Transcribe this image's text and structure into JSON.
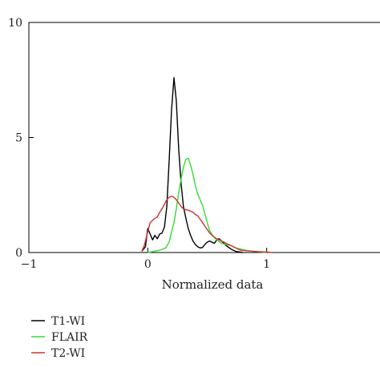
{
  "chart_data": {
    "type": "line",
    "title": "",
    "xlabel": "Normalized data",
    "ylabel": "",
    "xlim": [
      -1,
      2
    ],
    "ylim": [
      0,
      10
    ],
    "x_ticks": [
      {
        "value": -1,
        "label": "−1"
      },
      {
        "value": 0,
        "label": "0"
      },
      {
        "value": 1,
        "label": "1"
      }
    ],
    "y_ticks": [
      {
        "value": 0,
        "label": "0"
      },
      {
        "value": 5,
        "label": "5"
      },
      {
        "value": 10,
        "label": "10"
      }
    ],
    "grid": false,
    "legend_position": "bottom-left",
    "series": [
      {
        "name": "T1-WI",
        "color": "#000000",
        "points": [
          [
            -0.05,
            0.05
          ],
          [
            -0.02,
            0.25
          ],
          [
            0.0,
            1.05
          ],
          [
            0.02,
            0.8
          ],
          [
            0.04,
            0.55
          ],
          [
            0.06,
            0.75
          ],
          [
            0.08,
            0.6
          ],
          [
            0.1,
            0.8
          ],
          [
            0.12,
            0.85
          ],
          [
            0.14,
            1.1
          ],
          [
            0.16,
            2.0
          ],
          [
            0.18,
            4.0
          ],
          [
            0.2,
            6.2
          ],
          [
            0.22,
            7.6
          ],
          [
            0.24,
            6.6
          ],
          [
            0.26,
            4.5
          ],
          [
            0.28,
            3.0
          ],
          [
            0.3,
            2.0
          ],
          [
            0.32,
            1.5
          ],
          [
            0.34,
            1.05
          ],
          [
            0.36,
            0.75
          ],
          [
            0.38,
            0.5
          ],
          [
            0.4,
            0.35
          ],
          [
            0.42,
            0.25
          ],
          [
            0.44,
            0.2
          ],
          [
            0.46,
            0.22
          ],
          [
            0.48,
            0.35
          ],
          [
            0.5,
            0.45
          ],
          [
            0.52,
            0.5
          ],
          [
            0.54,
            0.45
          ],
          [
            0.56,
            0.4
          ],
          [
            0.58,
            0.55
          ],
          [
            0.6,
            0.6
          ],
          [
            0.62,
            0.5
          ],
          [
            0.64,
            0.4
          ],
          [
            0.66,
            0.3
          ],
          [
            0.7,
            0.15
          ],
          [
            0.74,
            0.05
          ],
          [
            0.8,
            0.0
          ]
        ]
      },
      {
        "name": "FLAIR",
        "color": "#33dd33",
        "points": [
          [
            0.0,
            0.0
          ],
          [
            0.05,
            0.05
          ],
          [
            0.1,
            0.1
          ],
          [
            0.15,
            0.2
          ],
          [
            0.18,
            0.45
          ],
          [
            0.2,
            0.9
          ],
          [
            0.22,
            1.3
          ],
          [
            0.24,
            1.9
          ],
          [
            0.26,
            2.6
          ],
          [
            0.28,
            3.2
          ],
          [
            0.3,
            3.7
          ],
          [
            0.32,
            4.05
          ],
          [
            0.34,
            4.1
          ],
          [
            0.36,
            3.8
          ],
          [
            0.38,
            3.4
          ],
          [
            0.4,
            2.9
          ],
          [
            0.42,
            2.55
          ],
          [
            0.44,
            2.3
          ],
          [
            0.46,
            2.05
          ],
          [
            0.48,
            1.7
          ],
          [
            0.5,
            1.3
          ],
          [
            0.52,
            0.95
          ],
          [
            0.55,
            0.7
          ],
          [
            0.58,
            0.55
          ],
          [
            0.62,
            0.4
          ],
          [
            0.66,
            0.35
          ],
          [
            0.7,
            0.3
          ],
          [
            0.74,
            0.2
          ],
          [
            0.78,
            0.15
          ],
          [
            0.82,
            0.1
          ],
          [
            0.88,
            0.05
          ],
          [
            0.95,
            0.02
          ],
          [
            1.0,
            0.0
          ]
        ]
      },
      {
        "name": "T2-WI",
        "color": "#cc3333",
        "points": [
          [
            -0.05,
            0.05
          ],
          [
            -0.03,
            0.3
          ],
          [
            0.0,
            0.9
          ],
          [
            0.02,
            1.3
          ],
          [
            0.05,
            1.45
          ],
          [
            0.08,
            1.55
          ],
          [
            0.1,
            1.75
          ],
          [
            0.12,
            1.9
          ],
          [
            0.14,
            2.1
          ],
          [
            0.16,
            2.3
          ],
          [
            0.18,
            2.4
          ],
          [
            0.2,
            2.45
          ],
          [
            0.22,
            2.4
          ],
          [
            0.24,
            2.3
          ],
          [
            0.26,
            2.15
          ],
          [
            0.28,
            2.0
          ],
          [
            0.3,
            1.9
          ],
          [
            0.33,
            1.85
          ],
          [
            0.36,
            1.8
          ],
          [
            0.38,
            1.75
          ],
          [
            0.4,
            1.65
          ],
          [
            0.42,
            1.6
          ],
          [
            0.44,
            1.45
          ],
          [
            0.46,
            1.3
          ],
          [
            0.48,
            1.15
          ],
          [
            0.5,
            1.0
          ],
          [
            0.52,
            0.85
          ],
          [
            0.55,
            0.7
          ],
          [
            0.58,
            0.6
          ],
          [
            0.62,
            0.5
          ],
          [
            0.66,
            0.4
          ],
          [
            0.7,
            0.3
          ],
          [
            0.74,
            0.2
          ],
          [
            0.78,
            0.1
          ],
          [
            0.82,
            0.08
          ],
          [
            0.9,
            0.05
          ],
          [
            1.0,
            0.02
          ],
          [
            1.05,
            0.0
          ]
        ]
      }
    ]
  }
}
